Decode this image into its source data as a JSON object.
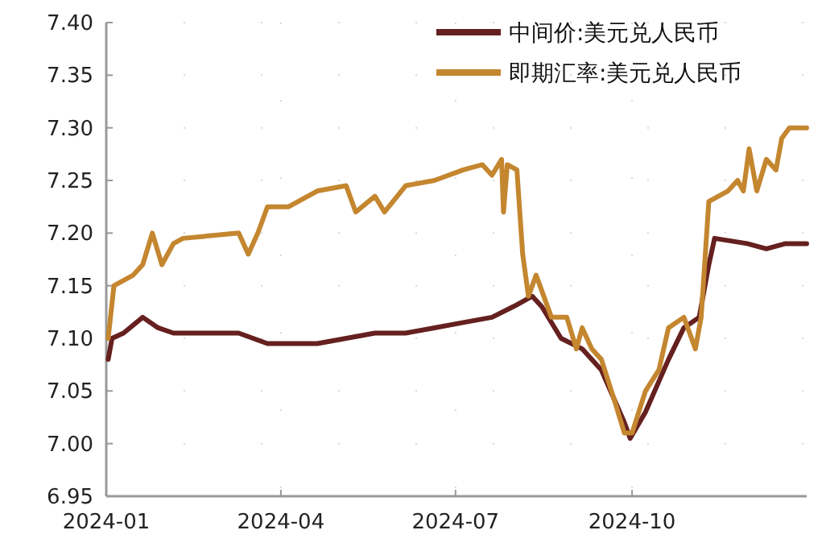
{
  "chart_data": {
    "type": "line",
    "legend": "top right",
    "grid": true,
    "xlim": [
      "2024-01-01",
      "2024-12-31"
    ],
    "xticks": [
      {
        "value": "2024-01-01",
        "label": "2024-01"
      },
      {
        "value": "2024-04-01",
        "label": "2024-04"
      },
      {
        "value": "2024-07-01",
        "label": "2024-07"
      },
      {
        "value": "2024-10-01",
        "label": "2024-10"
      }
    ],
    "ylim": [
      6.95,
      7.4
    ],
    "yticks": [
      {
        "value": 6.95,
        "label": "6.95"
      },
      {
        "value": 7.0,
        "label": "7.00"
      },
      {
        "value": 7.05,
        "label": "7.05"
      },
      {
        "value": 7.1,
        "label": "7.10"
      },
      {
        "value": 7.15,
        "label": "7.15"
      },
      {
        "value": 7.2,
        "label": "7.20"
      },
      {
        "value": 7.25,
        "label": "7.25"
      },
      {
        "value": 7.3,
        "label": "7.30"
      },
      {
        "value": 7.35,
        "label": "7.35"
      },
      {
        "value": 7.4,
        "label": "7.40"
      }
    ],
    "series": [
      {
        "name": "中间价:美元兑人民币",
        "color": "#65201f",
        "x": [
          "2024-01-02",
          "2024-01-04",
          "2024-01-10",
          "2024-01-20",
          "2024-01-28",
          "2024-02-05",
          "2024-02-20",
          "2024-03-10",
          "2024-03-25",
          "2024-04-05",
          "2024-04-20",
          "2024-05-05",
          "2024-05-20",
          "2024-06-05",
          "2024-06-20",
          "2024-07-05",
          "2024-07-20",
          "2024-07-31",
          "2024-08-05",
          "2024-08-10",
          "2024-08-15",
          "2024-08-25",
          "2024-09-05",
          "2024-09-15",
          "2024-09-27",
          "2024-09-30",
          "2024-10-08",
          "2024-10-20",
          "2024-10-28",
          "2024-11-05",
          "2024-11-10",
          "2024-11-13",
          "2024-11-30",
          "2024-12-10",
          "2024-12-20",
          "2024-12-31"
        ],
        "values": [
          7.08,
          7.1,
          7.105,
          7.12,
          7.11,
          7.105,
          7.105,
          7.105,
          7.095,
          7.095,
          7.095,
          7.1,
          7.105,
          7.105,
          7.11,
          7.115,
          7.12,
          7.13,
          7.135,
          7.14,
          7.13,
          7.1,
          7.09,
          7.07,
          7.02,
          7.005,
          7.03,
          7.08,
          7.11,
          7.12,
          7.17,
          7.195,
          7.19,
          7.185,
          7.19,
          7.19
        ]
      },
      {
        "name": "即期汇率:美元兑人民币",
        "color": "#c4862f",
        "x": [
          "2024-01-02",
          "2024-01-05",
          "2024-01-15",
          "2024-01-20",
          "2024-01-25",
          "2024-01-30",
          "2024-02-05",
          "2024-02-10",
          "2024-03-10",
          "2024-03-15",
          "2024-03-20",
          "2024-03-25",
          "2024-04-05",
          "2024-04-20",
          "2024-05-05",
          "2024-05-10",
          "2024-05-20",
          "2024-05-25",
          "2024-06-05",
          "2024-06-20",
          "2024-07-05",
          "2024-07-15",
          "2024-07-20",
          "2024-07-25",
          "2024-07-26",
          "2024-07-28",
          "2024-08-02",
          "2024-08-05",
          "2024-08-08",
          "2024-08-12",
          "2024-08-20",
          "2024-08-28",
          "2024-09-02",
          "2024-09-05",
          "2024-09-10",
          "2024-09-15",
          "2024-09-22",
          "2024-09-27",
          "2024-10-01",
          "2024-10-08",
          "2024-10-15",
          "2024-10-20",
          "2024-10-28",
          "2024-11-03",
          "2024-11-06",
          "2024-11-10",
          "2024-11-20",
          "2024-11-25",
          "2024-11-28",
          "2024-12-01",
          "2024-12-05",
          "2024-12-10",
          "2024-12-15",
          "2024-12-18",
          "2024-12-22",
          "2024-12-31"
        ],
        "values": [
          7.1,
          7.15,
          7.16,
          7.17,
          7.2,
          7.17,
          7.19,
          7.195,
          7.2,
          7.18,
          7.2,
          7.225,
          7.225,
          7.24,
          7.245,
          7.22,
          7.235,
          7.22,
          7.245,
          7.25,
          7.26,
          7.265,
          7.255,
          7.27,
          7.22,
          7.265,
          7.26,
          7.18,
          7.14,
          7.16,
          7.12,
          7.12,
          7.09,
          7.11,
          7.09,
          7.08,
          7.04,
          7.01,
          7.01,
          7.05,
          7.07,
          7.11,
          7.12,
          7.09,
          7.12,
          7.23,
          7.24,
          7.25,
          7.24,
          7.28,
          7.24,
          7.27,
          7.26,
          7.29,
          7.3,
          7.3
        ]
      }
    ]
  }
}
